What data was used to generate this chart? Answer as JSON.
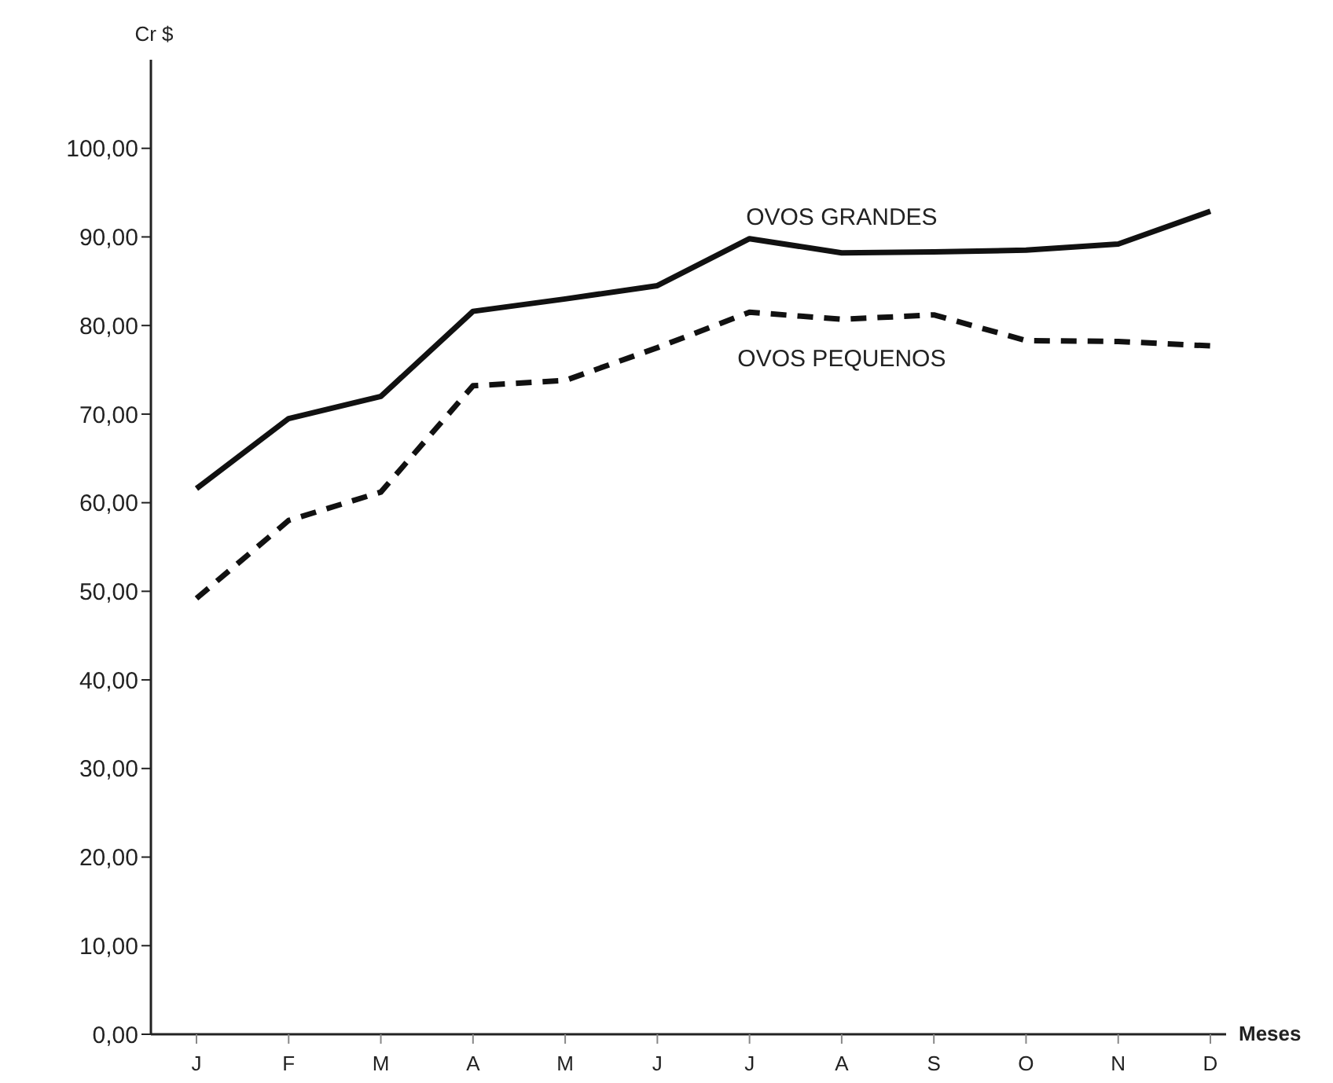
{
  "chart_data": {
    "type": "line",
    "ylabel": "Cr $",
    "xlabel": "Meses",
    "categories": [
      "J",
      "F",
      "M",
      "A",
      "M",
      "J",
      "J",
      "A",
      "S",
      "O",
      "N",
      "D"
    ],
    "series": [
      {
        "name": "OVOS GRANDES",
        "color": "#111111",
        "line_style": "solid",
        "values": [
          61.6,
          69.5,
          72.0,
          81.6,
          83.0,
          84.5,
          89.8,
          88.2,
          88.3,
          88.5,
          89.2,
          92.9
        ]
      },
      {
        "name": "OVOS PEQUENOS",
        "color": "#111111",
        "line_style": "dashed",
        "values": [
          49.2,
          58.0,
          61.2,
          73.2,
          73.8,
          77.5,
          81.5,
          80.7,
          81.2,
          78.3,
          78.2,
          77.7
        ]
      }
    ],
    "ylim": [
      0,
      110
    ],
    "yticks": [
      {
        "value": 0,
        "label": "0,00"
      },
      {
        "value": 10,
        "label": "10,00"
      },
      {
        "value": 20,
        "label": "20,00"
      },
      {
        "value": 30,
        "label": "30,00"
      },
      {
        "value": 40,
        "label": "40,00"
      },
      {
        "value": 50,
        "label": "50,00"
      },
      {
        "value": 60,
        "label": "60,00"
      },
      {
        "value": 70,
        "label": "70,00"
      },
      {
        "value": 80,
        "label": "80,00"
      },
      {
        "value": 90,
        "label": "90,00"
      },
      {
        "value": 100,
        "label": "100,00"
      }
    ],
    "grid": false,
    "legend": false,
    "marker": "none"
  }
}
